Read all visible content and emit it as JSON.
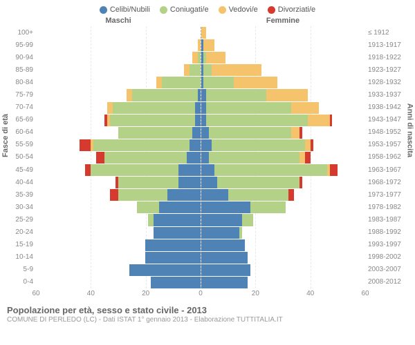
{
  "legend": [
    {
      "label": "Celibi/Nubili",
      "color": "#4f83b5"
    },
    {
      "label": "Coniugati/e",
      "color": "#b3d187"
    },
    {
      "label": "Vedovi/e",
      "color": "#f5c36b"
    },
    {
      "label": "Divorziati/e",
      "color": "#d63a2e"
    }
  ],
  "header_male": "Maschi",
  "header_female": "Femmine",
  "axis_left": "Fasce di età",
  "axis_right": "Anni di nascita",
  "xmax": 60,
  "xticks": [
    60,
    40,
    20,
    0,
    20,
    40,
    60
  ],
  "colors": {
    "bg": "#ffffff",
    "grid": "#e8e8e8",
    "center": "#aaaaaa",
    "row_divider": "rgba(255,255,255,0.7)"
  },
  "rows": [
    {
      "age": "100+",
      "birth": "≤ 1912",
      "m": [
        0,
        0,
        0,
        0
      ],
      "f": [
        0,
        0,
        2,
        0
      ]
    },
    {
      "age": "95-99",
      "birth": "1913-1917",
      "m": [
        0,
        0,
        1,
        0
      ],
      "f": [
        1,
        0,
        4,
        0
      ]
    },
    {
      "age": "90-94",
      "birth": "1918-1922",
      "m": [
        0,
        1,
        2,
        0
      ],
      "f": [
        1,
        1,
        7,
        0
      ]
    },
    {
      "age": "85-89",
      "birth": "1923-1927",
      "m": [
        0,
        4,
        2,
        0
      ],
      "f": [
        1,
        3,
        18,
        0
      ]
    },
    {
      "age": "80-84",
      "birth": "1928-1932",
      "m": [
        0,
        14,
        2,
        0
      ],
      "f": [
        1,
        11,
        16,
        0
      ]
    },
    {
      "age": "75-79",
      "birth": "1933-1937",
      "m": [
        1,
        24,
        2,
        0
      ],
      "f": [
        2,
        22,
        15,
        0
      ]
    },
    {
      "age": "70-74",
      "birth": "1938-1942",
      "m": [
        2,
        30,
        2,
        0
      ],
      "f": [
        2,
        31,
        10,
        0
      ]
    },
    {
      "age": "65-69",
      "birth": "1943-1947",
      "m": [
        2,
        31,
        1,
        1
      ],
      "f": [
        2,
        37,
        8,
        1
      ]
    },
    {
      "age": "60-64",
      "birth": "1948-1952",
      "m": [
        3,
        27,
        0,
        0
      ],
      "f": [
        3,
        30,
        3,
        1
      ]
    },
    {
      "age": "55-59",
      "birth": "1953-1957",
      "m": [
        4,
        35,
        1,
        4
      ],
      "f": [
        4,
        34,
        2,
        1
      ]
    },
    {
      "age": "50-54",
      "birth": "1958-1962",
      "m": [
        5,
        30,
        0,
        3
      ],
      "f": [
        3,
        33,
        2,
        2
      ]
    },
    {
      "age": "45-49",
      "birth": "1963-1967",
      "m": [
        8,
        32,
        0,
        2
      ],
      "f": [
        5,
        41,
        1,
        3
      ]
    },
    {
      "age": "40-44",
      "birth": "1968-1972",
      "m": [
        8,
        22,
        0,
        1
      ],
      "f": [
        6,
        30,
        0,
        1
      ]
    },
    {
      "age": "35-39",
      "birth": "1973-1977",
      "m": [
        12,
        18,
        0,
        3
      ],
      "f": [
        10,
        22,
        0,
        2
      ]
    },
    {
      "age": "30-34",
      "birth": "1978-1982",
      "m": [
        15,
        8,
        0,
        0
      ],
      "f": [
        18,
        13,
        0,
        0
      ]
    },
    {
      "age": "25-29",
      "birth": "1983-1987",
      "m": [
        17,
        2,
        0,
        0
      ],
      "f": [
        15,
        4,
        0,
        0
      ]
    },
    {
      "age": "20-24",
      "birth": "1988-1992",
      "m": [
        17,
        0,
        0,
        0
      ],
      "f": [
        14,
        1,
        0,
        0
      ]
    },
    {
      "age": "15-19",
      "birth": "1993-1997",
      "m": [
        20,
        0,
        0,
        0
      ],
      "f": [
        16,
        0,
        0,
        0
      ]
    },
    {
      "age": "10-14",
      "birth": "1998-2002",
      "m": [
        20,
        0,
        0,
        0
      ],
      "f": [
        17,
        0,
        0,
        0
      ]
    },
    {
      "age": "5-9",
      "birth": "2003-2007",
      "m": [
        26,
        0,
        0,
        0
      ],
      "f": [
        18,
        0,
        0,
        0
      ]
    },
    {
      "age": "0-4",
      "birth": "2008-2012",
      "m": [
        18,
        0,
        0,
        0
      ],
      "f": [
        17,
        0,
        0,
        0
      ]
    }
  ],
  "footer_title": "Popolazione per età, sesso e stato civile - 2013",
  "footer_sub": "COMUNE DI PERLEDO (LC) - Dati ISTAT 1° gennaio 2013 - Elaborazione TUTTITALIA.IT"
}
